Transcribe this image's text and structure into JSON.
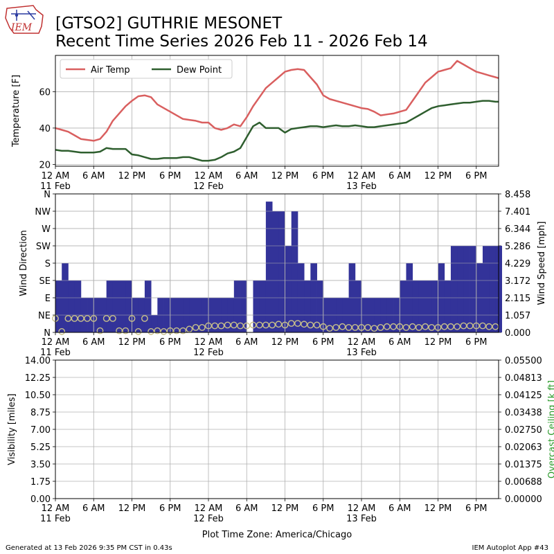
{
  "header": {
    "logo_text": "IEM",
    "title_line1": "[GTSO2] GUTHRIE MESONET",
    "title_line2": "Recent Time Series 2026 Feb 11 - 2026 Feb 14"
  },
  "footer": {
    "generated": "Generated at 13 Feb 2026 9:35 PM CST in 0.43s",
    "app": "IEM Autoplot App #43",
    "timezone": "Plot Time Zone: America/Chicago"
  },
  "colors": {
    "air_temp": "#d95f5f",
    "dew_point": "#2e5e2e",
    "wind_bar": "#333399",
    "wind_marker": "#c8c08a",
    "ceiling_label": "#2a9a2a",
    "grid": "#b0b0b0"
  },
  "time_ticks": {
    "hours": [
      0,
      6,
      12,
      18,
      24,
      30,
      36,
      42,
      48,
      54,
      60,
      66
    ],
    "labels": [
      "12 AM",
      "6 AM",
      "12 PM",
      "6 PM",
      "12 AM",
      "6 AM",
      "12 PM",
      "6 PM",
      "12 AM",
      "6 AM",
      "12 PM",
      "6 PM"
    ],
    "date_labels": [
      {
        "hour": 0,
        "text": "11 Feb"
      },
      {
        "hour": 24,
        "text": "12 Feb"
      },
      {
        "hour": 48,
        "text": "13 Feb"
      }
    ],
    "x_range_hours": [
      0,
      69.5
    ]
  },
  "chart_data": [
    {
      "type": "line",
      "ylabel": "Temperature [F]",
      "ylim": [
        19,
        80
      ],
      "yticks": [
        20,
        40,
        60
      ],
      "grid": true,
      "legend_position": "upper-left",
      "x_units": "hours since 11 Feb 12 AM",
      "series": [
        {
          "name": "Air Temp",
          "color_key": "air_temp",
          "x": [
            0,
            1,
            2,
            3,
            4,
            5,
            6,
            7,
            8,
            9,
            10,
            11,
            12,
            13,
            14,
            15,
            16,
            17,
            18,
            19,
            20,
            21,
            22,
            23,
            24,
            25,
            26,
            27,
            28,
            29,
            30,
            31,
            32,
            33,
            34,
            35,
            36,
            37,
            38,
            39,
            40,
            41,
            42,
            43,
            44,
            45,
            46,
            47,
            48,
            49,
            50,
            51,
            52,
            53,
            54,
            55,
            56,
            57,
            58,
            59,
            60,
            61,
            62,
            63,
            64,
            65,
            66,
            67,
            68,
            69,
            69.5
          ],
          "values": [
            40,
            39,
            38,
            36,
            34,
            33.5,
            33,
            34,
            38,
            44,
            48,
            52,
            55,
            57.5,
            58,
            57,
            53,
            51,
            49,
            47,
            45,
            44.5,
            44,
            43,
            43,
            40,
            39,
            40,
            42,
            41,
            46,
            52,
            57,
            62,
            65,
            68,
            71,
            72,
            72.5,
            72,
            68,
            64,
            58,
            56,
            55,
            54,
            53,
            52,
            51,
            50.5,
            49,
            47,
            47.5,
            48,
            49,
            50,
            55,
            60,
            65,
            68,
            71,
            72,
            73,
            77,
            75,
            73,
            71,
            70,
            69,
            68,
            67.5
          ]
        },
        {
          "name": "Dew Point",
          "color_key": "dew_point",
          "x": [
            0,
            1,
            2,
            3,
            4,
            5,
            6,
            7,
            8,
            9,
            10,
            11,
            12,
            13,
            14,
            15,
            16,
            17,
            18,
            19,
            20,
            21,
            22,
            23,
            24,
            25,
            26,
            27,
            28,
            29,
            30,
            31,
            32,
            33,
            34,
            35,
            36,
            37,
            38,
            39,
            40,
            41,
            42,
            43,
            44,
            45,
            46,
            47,
            48,
            49,
            50,
            51,
            52,
            53,
            54,
            55,
            56,
            57,
            58,
            59,
            60,
            61,
            62,
            63,
            64,
            65,
            66,
            67,
            68,
            69,
            69.5
          ],
          "values": [
            28,
            27.5,
            27.5,
            27,
            26.5,
            26.5,
            26.5,
            27,
            29,
            28.5,
            28.5,
            28.5,
            25.5,
            25,
            24,
            23,
            23,
            23.5,
            23.5,
            23.5,
            24,
            24,
            23,
            22,
            22,
            22.5,
            24,
            26,
            27,
            29,
            35,
            41,
            43,
            40,
            40,
            40,
            37.5,
            39.5,
            40,
            40.5,
            41,
            41,
            40.5,
            41,
            41.5,
            41,
            41,
            41.5,
            41,
            40.5,
            40.5,
            41,
            41.5,
            42,
            42.5,
            43,
            45,
            47,
            49,
            51,
            52,
            52.5,
            53,
            53.5,
            54,
            54,
            54.5,
            55,
            55,
            54.5,
            54.5
          ]
        }
      ]
    },
    {
      "type": "bar",
      "ylabel": "Wind Direction",
      "y2label": "Wind Speed [mph]",
      "grid": true,
      "x_units": "hours since 11 Feb 12 AM",
      "direction_ticks": [
        "N",
        "NE",
        "E",
        "SE",
        "S",
        "SW",
        "W",
        "NW",
        "N"
      ],
      "direction_degrees": [
        0,
        45,
        90,
        135,
        180,
        225,
        270,
        315,
        360
      ],
      "speed_ticks": [
        "0.000",
        "1.057",
        "2.115",
        "3.172",
        "4.229",
        "5.286",
        "6.344",
        "7.401",
        "8.458"
      ],
      "speed_lim": [
        0,
        8.458
      ],
      "series": [
        {
          "name": "Wind Direction",
          "color_key": "wind_bar",
          "x": [
            0.5,
            1.5,
            2.5,
            3.5,
            4.5,
            5.5,
            6.5,
            7.5,
            8.5,
            9.5,
            10.5,
            11.5,
            12.5,
            13.5,
            14.5,
            15.5,
            16.5,
            17.5,
            18.5,
            19.5,
            20.5,
            21.5,
            22.5,
            23.5,
            24.5,
            25.5,
            26.5,
            27.5,
            28.5,
            29.5,
            30.5,
            31.5,
            32.5,
            33.5,
            34.5,
            35.5,
            36.5,
            37.5,
            38.5,
            39.5,
            40.5,
            41.5,
            42.5,
            43.5,
            44.5,
            45.5,
            46.5,
            47.5,
            48.5,
            49.5,
            50.5,
            51.5,
            52.5,
            53.5,
            54.5,
            55.5,
            56.5,
            57.5,
            58.5,
            59.5,
            60.5,
            61.5,
            62.5,
            63.5,
            64.5,
            65.5,
            66.5,
            67.5,
            68.5,
            69.5
          ],
          "values": [
            135,
            180,
            135,
            135,
            90,
            90,
            90,
            90,
            135,
            135,
            135,
            135,
            90,
            90,
            135,
            45,
            90,
            90,
            90,
            90,
            90,
            90,
            90,
            90,
            90,
            90,
            90,
            90,
            135,
            135,
            null,
            135,
            135,
            340,
            315,
            315,
            225,
            315,
            180,
            135,
            180,
            135,
            90,
            90,
            90,
            90,
            180,
            135,
            90,
            90,
            90,
            90,
            90,
            90,
            135,
            180,
            135,
            135,
            135,
            135,
            180,
            135,
            225,
            225,
            225,
            225,
            180,
            225,
            225,
            225
          ]
        },
        {
          "name": "Wind Speed",
          "color_key": "wind_marker",
          "x": [
            0,
            1,
            2,
            3,
            4,
            5,
            6,
            7,
            8,
            9,
            10,
            11,
            12,
            13,
            14,
            15,
            16,
            17,
            18,
            19,
            20,
            21,
            22,
            23,
            24,
            25,
            26,
            27,
            28,
            29,
            30,
            31,
            32,
            33,
            34,
            35,
            36,
            37,
            38,
            39,
            40,
            41,
            42,
            43,
            44,
            45,
            46,
            47,
            48,
            49,
            50,
            51,
            52,
            53,
            54,
            55,
            56,
            57,
            58,
            59,
            60,
            61,
            62,
            63,
            64,
            65,
            66,
            67,
            68,
            69
          ],
          "values": [
            0.85,
            0.05,
            0.85,
            0.85,
            0.85,
            0.85,
            0.85,
            0.1,
            0.85,
            0.85,
            0.1,
            0.1,
            0.85,
            0.05,
            0.85,
            0.05,
            0.1,
            0.05,
            0.1,
            0.1,
            0.1,
            0.2,
            0.3,
            0.3,
            0.4,
            0.4,
            0.4,
            0.45,
            0.45,
            0.4,
            0.4,
            0.45,
            0.45,
            0.45,
            0.45,
            0.5,
            0.45,
            0.55,
            0.55,
            0.5,
            0.45,
            0.45,
            0.35,
            0.25,
            0.3,
            0.35,
            0.3,
            0.3,
            0.3,
            0.3,
            0.25,
            0.3,
            0.35,
            0.35,
            0.35,
            0.3,
            0.35,
            0.3,
            0.35,
            0.3,
            0.3,
            0.35,
            0.35,
            0.35,
            0.4,
            0.4,
            0.4,
            0.4,
            0.35,
            0.35
          ]
        }
      ]
    },
    {
      "type": "line",
      "ylabel": "Visibility [miles]",
      "y2label": "Overcast Ceiling [k ft]",
      "grid": true,
      "yticks": [
        "0.00",
        "1.75",
        "3.50",
        "5.25",
        "7.00",
        "8.75",
        "10.50",
        "12.25",
        "14.00"
      ],
      "ylim": [
        0,
        14
      ],
      "y2ticks": [
        "0.00000",
        "0.00688",
        "0.01375",
        "0.02063",
        "0.02750",
        "0.03438",
        "0.04125",
        "0.04813",
        "0.05500"
      ],
      "y2lim": [
        0,
        0.055
      ],
      "series": []
    }
  ]
}
